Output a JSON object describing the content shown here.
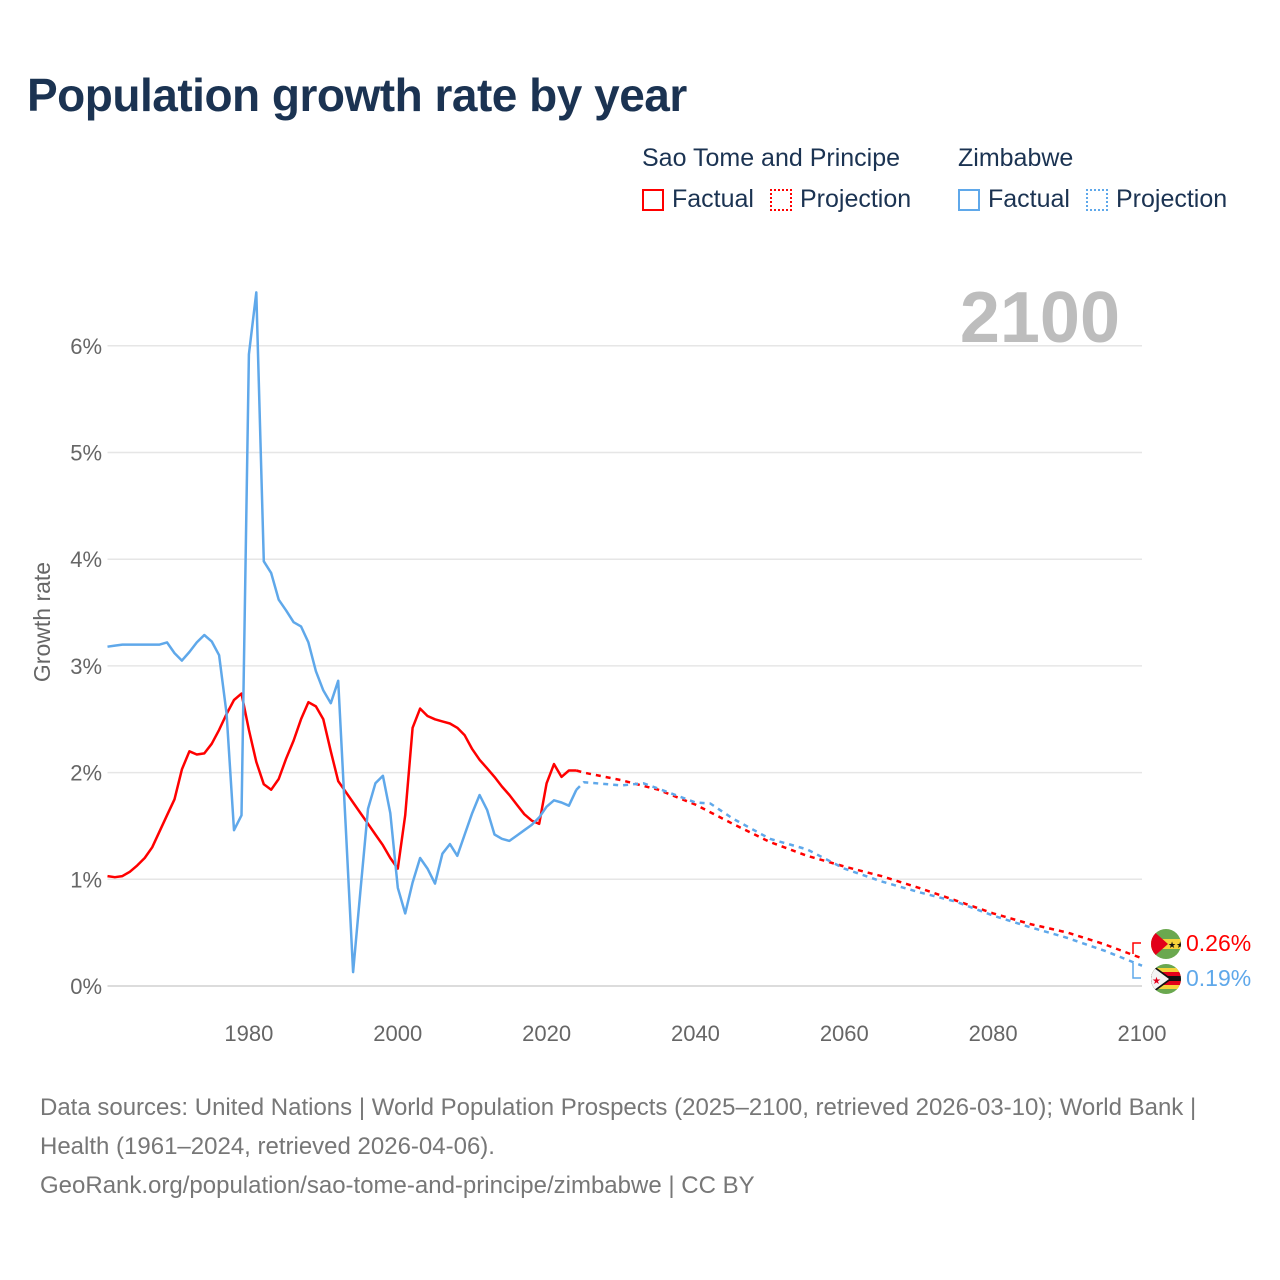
{
  "title": "Population growth rate by year",
  "legend": {
    "groups": [
      {
        "country": "Sao Tome and Principe",
        "color": "#ff0000",
        "factual_label": "Factual",
        "projection_label": "Projection"
      },
      {
        "country": "Zimbabwe",
        "color": "#5fa8ea",
        "factual_label": "Factual",
        "projection_label": "Projection"
      }
    ]
  },
  "year_watermark": "2100",
  "end_labels": {
    "stp": "0.26%",
    "zwe": "0.19%"
  },
  "sources": {
    "line1": "Data sources: United Nations | World Population Prospects (2025–2100, retrieved 2026-03-10); World Bank | Health (1961–2024, retrieved 2026-04-06).",
    "line2": "GeoRank.org/population/sao-tome-and-principe/zimbabwe | CC BY"
  },
  "chart_data": {
    "type": "line",
    "title": "Population growth rate by year",
    "xlabel": "",
    "ylabel": "Growth rate",
    "xlim": [
      1961,
      2100
    ],
    "ylim": [
      0,
      6.5
    ],
    "x_ticks": [
      "1980",
      "2000",
      "2020",
      "2040",
      "2060",
      "2080",
      "2100"
    ],
    "y_ticks": [
      "0%",
      "1%",
      "2%",
      "3%",
      "4%",
      "5%",
      "6%"
    ],
    "grid": true,
    "legend_position": "top-right",
    "series": [
      {
        "name": "Sao Tome and Principe — Factual",
        "color": "#ff0000",
        "dashed": false,
        "x": [
          1961,
          1962,
          1963,
          1964,
          1965,
          1966,
          1967,
          1968,
          1969,
          1970,
          1971,
          1972,
          1973,
          1974,
          1975,
          1976,
          1977,
          1978,
          1979,
          1980,
          1981,
          1982,
          1983,
          1984,
          1985,
          1986,
          1987,
          1988,
          1989,
          1990,
          1991,
          1992,
          1993,
          1994,
          1995,
          1996,
          1997,
          1998,
          1999,
          2000,
          2001,
          2002,
          2003,
          2004,
          2005,
          2006,
          2007,
          2008,
          2009,
          2010,
          2011,
          2012,
          2013,
          2014,
          2015,
          2016,
          2017,
          2018,
          2019,
          2020,
          2021,
          2022,
          2023,
          2024
        ],
        "y": [
          1.03,
          1.02,
          1.03,
          1.07,
          1.13,
          1.2,
          1.3,
          1.45,
          1.6,
          1.75,
          2.03,
          2.2,
          2.17,
          2.18,
          2.27,
          2.4,
          2.55,
          2.68,
          2.74,
          2.4,
          2.1,
          1.89,
          1.84,
          1.94,
          2.13,
          2.3,
          2.5,
          2.66,
          2.62,
          2.5,
          2.2,
          1.92,
          1.82,
          1.72,
          1.62,
          1.52,
          1.42,
          1.32,
          1.2,
          1.1,
          1.6,
          2.42,
          2.6,
          2.53,
          2.5,
          2.48,
          2.46,
          2.42,
          2.35,
          2.22,
          2.12,
          2.04,
          1.96,
          1.87,
          1.79,
          1.7,
          1.61,
          1.55,
          1.52,
          1.9,
          2.08,
          1.96,
          2.02,
          2.02
        ]
      },
      {
        "name": "Sao Tome and Principe — Projection",
        "color": "#ff0000",
        "dashed": true,
        "x": [
          2024,
          2025,
          2030,
          2035,
          2040,
          2045,
          2050,
          2055,
          2060,
          2065,
          2070,
          2075,
          2080,
          2085,
          2090,
          2095,
          2100
        ],
        "y": [
          2.02,
          2.0,
          1.93,
          1.84,
          1.7,
          1.52,
          1.35,
          1.22,
          1.12,
          1.03,
          0.92,
          0.8,
          0.68,
          0.58,
          0.5,
          0.39,
          0.26
        ]
      },
      {
        "name": "Zimbabwe — Factual",
        "color": "#5fa8ea",
        "dashed": false,
        "x": [
          1961,
          1962,
          1963,
          1964,
          1965,
          1966,
          1967,
          1968,
          1969,
          1970,
          1971,
          1972,
          1973,
          1974,
          1975,
          1976,
          1977,
          1978,
          1979,
          1980,
          1981,
          1982,
          1983,
          1984,
          1985,
          1986,
          1987,
          1988,
          1989,
          1990,
          1991,
          1992,
          1993,
          1994,
          1995,
          1996,
          1997,
          1998,
          1999,
          2000,
          2001,
          2002,
          2003,
          2004,
          2005,
          2006,
          2007,
          2008,
          2009,
          2010,
          2011,
          2012,
          2013,
          2014,
          2015,
          2016,
          2017,
          2018,
          2019,
          2020,
          2021,
          2022,
          2023,
          2024
        ],
        "y": [
          3.18,
          3.19,
          3.2,
          3.2,
          3.2,
          3.2,
          3.2,
          3.2,
          3.22,
          3.12,
          3.05,
          3.13,
          3.22,
          3.29,
          3.23,
          3.1,
          2.55,
          1.46,
          1.6,
          5.92,
          6.5,
          3.98,
          3.87,
          3.62,
          3.52,
          3.41,
          3.37,
          3.22,
          2.95,
          2.77,
          2.65,
          2.86,
          1.5,
          0.13,
          0.9,
          1.66,
          1.9,
          1.97,
          1.62,
          0.92,
          0.68,
          0.97,
          1.2,
          1.1,
          0.96,
          1.24,
          1.33,
          1.22,
          1.42,
          1.62,
          1.79,
          1.65,
          1.42,
          1.38,
          1.36,
          1.41,
          1.46,
          1.51,
          1.58,
          1.68,
          1.74,
          1.72,
          1.69,
          1.84
        ]
      },
      {
        "name": "Zimbabwe — Projection",
        "color": "#5fa8ea",
        "dashed": true,
        "x": [
          2024,
          2025,
          2030,
          2033,
          2035,
          2040,
          2042,
          2045,
          2050,
          2055,
          2060,
          2065,
          2070,
          2075,
          2080,
          2085,
          2090,
          2095,
          2100
        ],
        "y": [
          1.84,
          1.91,
          1.88,
          1.9,
          1.85,
          1.72,
          1.71,
          1.57,
          1.38,
          1.28,
          1.1,
          0.98,
          0.88,
          0.79,
          0.66,
          0.55,
          0.45,
          0.33,
          0.19
        ]
      }
    ]
  }
}
